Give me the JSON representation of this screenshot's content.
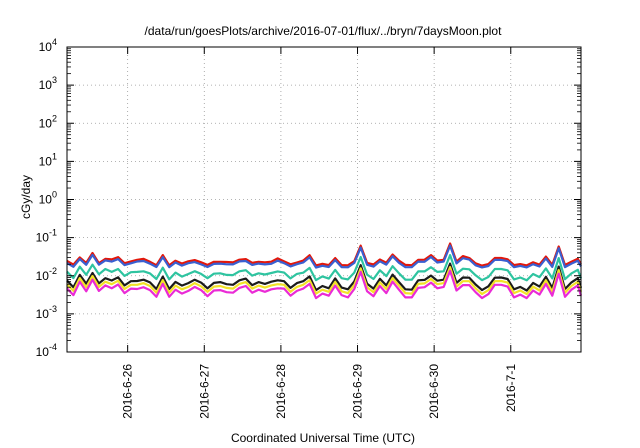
{
  "chart_data": {
    "type": "line",
    "title": "/data/run/goesPlots/archive/2016-07-01/flux/../bryn/7daysMoon.plot",
    "xlabel": "Coordinated Universal Time (UTC)",
    "ylabel": "cGy/day",
    "yscale": "log",
    "ylim": [
      0.0001,
      10000
    ],
    "xlim": [
      "2016-06-25T05:00",
      "2016-07-01T22:00"
    ],
    "grid": true,
    "legend": "none",
    "y_ticks": [
      {
        "mant": "10",
        "exp": "-4"
      },
      {
        "mant": "10",
        "exp": "-3"
      },
      {
        "mant": "10",
        "exp": "-2"
      },
      {
        "mant": "10",
        "exp": "-1"
      },
      {
        "mant": "10",
        "exp": "0"
      },
      {
        "mant": "10",
        "exp": "1"
      },
      {
        "mant": "10",
        "exp": "2"
      },
      {
        "mant": "10",
        "exp": "3"
      },
      {
        "mant": "10",
        "exp": "4"
      }
    ],
    "x_ticks": [
      "2016-6-26",
      "2016-6-27",
      "2016-6-28",
      "2016-6-29",
      "2016-6-30",
      "2016-7-1"
    ],
    "x": [
      "2016-06-25T05:00",
      "2016-06-25T07:00",
      "2016-06-25T09:00",
      "2016-06-25T11:00",
      "2016-06-25T13:00",
      "2016-06-25T15:00",
      "2016-06-25T17:00",
      "2016-06-25T19:00",
      "2016-06-25T21:00",
      "2016-06-25T23:00",
      "2016-06-26T01:00",
      "2016-06-26T03:00",
      "2016-06-26T05:00",
      "2016-06-26T07:00",
      "2016-06-26T09:00",
      "2016-06-26T11:00",
      "2016-06-26T13:00",
      "2016-06-26T15:00",
      "2016-06-26T17:00",
      "2016-06-26T19:00",
      "2016-06-26T21:00",
      "2016-06-26T23:00",
      "2016-06-27T01:00",
      "2016-06-27T03:00",
      "2016-06-27T05:00",
      "2016-06-27T07:00",
      "2016-06-27T09:00",
      "2016-06-27T11:00",
      "2016-06-27T13:00",
      "2016-06-27T15:00",
      "2016-06-27T17:00",
      "2016-06-27T19:00",
      "2016-06-27T21:00",
      "2016-06-27T23:00",
      "2016-06-28T01:00",
      "2016-06-28T03:00",
      "2016-06-28T05:00",
      "2016-06-28T07:00",
      "2016-06-28T09:00",
      "2016-06-28T11:00",
      "2016-06-28T13:00",
      "2016-06-28T15:00",
      "2016-06-28T17:00",
      "2016-06-28T19:00",
      "2016-06-28T21:00",
      "2016-06-28T23:00",
      "2016-06-29T01:00",
      "2016-06-29T03:00",
      "2016-06-29T05:00",
      "2016-06-29T07:00",
      "2016-06-29T09:00",
      "2016-06-29T11:00",
      "2016-06-29T13:00",
      "2016-06-29T15:00",
      "2016-06-29T17:00",
      "2016-06-29T19:00",
      "2016-06-29T21:00",
      "2016-06-29T23:00",
      "2016-06-30T01:00",
      "2016-06-30T03:00",
      "2016-06-30T05:00",
      "2016-06-30T07:00",
      "2016-06-30T09:00",
      "2016-06-30T11:00",
      "2016-06-30T13:00",
      "2016-06-30T15:00",
      "2016-06-30T17:00",
      "2016-06-30T19:00",
      "2016-06-30T21:00",
      "2016-06-30T23:00",
      "2016-07-01T01:00",
      "2016-07-01T03:00",
      "2016-07-01T05:00",
      "2016-07-01T07:00",
      "2016-07-01T09:00",
      "2016-07-01T11:00",
      "2016-07-01T13:00",
      "2016-07-01T15:00",
      "2016-07-01T17:00",
      "2016-07-01T19:00",
      "2016-07-01T21:00",
      "2016-07-01T22:00"
    ],
    "series": [
      {
        "color": "#e3170a",
        "values": [
          0.0245,
          0.0196,
          0.0302,
          0.0217,
          0.0396,
          0.0214,
          0.0277,
          0.0269,
          0.0308,
          0.0214,
          0.0236,
          0.0262,
          0.0276,
          0.0232,
          0.0189,
          0.0347,
          0.0188,
          0.0248,
          0.021,
          0.0239,
          0.0257,
          0.0225,
          0.0193,
          0.0232,
          0.0231,
          0.0229,
          0.0224,
          0.0264,
          0.0274,
          0.0218,
          0.0232,
          0.0225,
          0.0233,
          0.0285,
          0.0238,
          0.02,
          0.0223,
          0.0249,
          0.0346,
          0.0187,
          0.0206,
          0.019,
          0.029,
          0.019,
          0.0188,
          0.0241,
          0.0615,
          0.0217,
          0.0197,
          0.0267,
          0.022,
          0.036,
          0.0248,
          0.0192,
          0.0189,
          0.0262,
          0.0263,
          0.0349,
          0.0249,
          0.0262,
          0.0702,
          0.0235,
          0.0327,
          0.0292,
          0.0212,
          0.0185,
          0.0202,
          0.0292,
          0.0293,
          0.027,
          0.019,
          0.0202,
          0.0187,
          0.0225,
          0.0196,
          0.0317,
          0.0193,
          0.0586,
          0.0191,
          0.0233,
          0.0278,
          0.0197
        ]
      },
      {
        "color": "#3a5fd0",
        "values": [
          0.0215,
          0.0172,
          0.0275,
          0.0194,
          0.0353,
          0.0195,
          0.0252,
          0.0235,
          0.0273,
          0.019,
          0.0212,
          0.0236,
          0.0243,
          0.0207,
          0.017,
          0.0306,
          0.0168,
          0.0222,
          0.0185,
          0.0213,
          0.0228,
          0.0199,
          0.017,
          0.0205,
          0.0208,
          0.02,
          0.0198,
          0.0238,
          0.0243,
          0.0193,
          0.0208,
          0.0199,
          0.0206,
          0.025,
          0.0214,
          0.0176,
          0.0201,
          0.0223,
          0.0305,
          0.0164,
          0.0182,
          0.017,
          0.0257,
          0.0169,
          0.0167,
          0.0217,
          0.0546,
          0.0194,
          0.0174,
          0.0239,
          0.0196,
          0.0323,
          0.0219,
          0.0168,
          0.0168,
          0.0235,
          0.0232,
          0.031,
          0.0223,
          0.0236,
          0.0618,
          0.0211,
          0.0288,
          0.0265,
          0.0188,
          0.0166,
          0.018,
          0.0262,
          0.026,
          0.0242,
          0.0168,
          0.0181,
          0.0166,
          0.0201,
          0.0175,
          0.0283,
          0.0171,
          0.0528,
          0.0169,
          0.0208,
          0.0246,
          0.0176
        ]
      },
      {
        "color": "#2ec4a0",
        "values": [
          0.0128,
          0.0087,
          0.0173,
          0.0106,
          0.0195,
          0.0109,
          0.015,
          0.0126,
          0.015,
          0.0099,
          0.0124,
          0.0126,
          0.0131,
          0.0115,
          0.0082,
          0.0163,
          0.008,
          0.0121,
          0.0095,
          0.0111,
          0.0132,
          0.0112,
          0.0086,
          0.0113,
          0.0116,
          0.0105,
          0.0104,
          0.0131,
          0.014,
          0.0101,
          0.0116,
          0.0108,
          0.0118,
          0.013,
          0.0121,
          0.0085,
          0.0112,
          0.012,
          0.0161,
          0.0077,
          0.0096,
          0.0084,
          0.0142,
          0.0086,
          0.008,
          0.0121,
          0.031,
          0.0107,
          0.0082,
          0.0139,
          0.0098,
          0.0178,
          0.0116,
          0.0079,
          0.0079,
          0.013,
          0.013,
          0.0168,
          0.0126,
          0.0131,
          0.0348,
          0.0113,
          0.0153,
          0.0148,
          0.0103,
          0.0077,
          0.0093,
          0.015,
          0.015,
          0.0139,
          0.008,
          0.009,
          0.0076,
          0.0111,
          0.0092,
          0.0156,
          0.0085,
          0.029,
          0.0081,
          0.0115,
          0.0143,
          0.0085
        ]
      },
      {
        "color": "#1b1b1b",
        "values": [
          0.0075,
          0.005,
          0.0105,
          0.0062,
          0.0118,
          0.0063,
          0.0086,
          0.0075,
          0.0091,
          0.0056,
          0.0072,
          0.0073,
          0.0079,
          0.0067,
          0.0045,
          0.0095,
          0.0045,
          0.0069,
          0.0055,
          0.0064,
          0.0079,
          0.0066,
          0.0047,
          0.0065,
          0.0068,
          0.006,
          0.0058,
          0.0076,
          0.0084,
          0.0057,
          0.0068,
          0.0061,
          0.007,
          0.0076,
          0.0072,
          0.0048,
          0.0064,
          0.0072,
          0.0096,
          0.0042,
          0.0054,
          0.0047,
          0.0085,
          0.0049,
          0.0044,
          0.0071,
          0.019,
          0.0062,
          0.0046,
          0.0083,
          0.0056,
          0.0107,
          0.0068,
          0.0044,
          0.0043,
          0.0076,
          0.0078,
          0.0101,
          0.0074,
          0.0079,
          0.0207,
          0.0065,
          0.009,
          0.0089,
          0.0059,
          0.0042,
          0.0053,
          0.0089,
          0.009,
          0.0082,
          0.0044,
          0.0051,
          0.0041,
          0.0065,
          0.0052,
          0.0094,
          0.0048,
          0.0174,
          0.0045,
          0.0067,
          0.0086,
          0.0048
        ]
      },
      {
        "color": "#f2e227",
        "values": [
          0.006,
          0.004,
          0.0087,
          0.005,
          0.0098,
          0.0051,
          0.007,
          0.006,
          0.0074,
          0.0045,
          0.0058,
          0.0058,
          0.0064,
          0.0054,
          0.0036,
          0.0077,
          0.0036,
          0.0055,
          0.0044,
          0.0051,
          0.0064,
          0.0053,
          0.0038,
          0.0052,
          0.0054,
          0.0048,
          0.0046,
          0.0061,
          0.0068,
          0.0046,
          0.0055,
          0.0049,
          0.0056,
          0.006,
          0.0058,
          0.0038,
          0.0051,
          0.0058,
          0.0077,
          0.0034,
          0.0043,
          0.0038,
          0.0069,
          0.0039,
          0.0035,
          0.0057,
          0.0156,
          0.005,
          0.0037,
          0.0067,
          0.0045,
          0.0087,
          0.0055,
          0.0035,
          0.0034,
          0.0061,
          0.0063,
          0.0082,
          0.006,
          0.0064,
          0.0168,
          0.0052,
          0.0072,
          0.0072,
          0.0047,
          0.0033,
          0.0042,
          0.0072,
          0.0073,
          0.0066,
          0.0035,
          0.0041,
          0.0033,
          0.0052,
          0.0041,
          0.0076,
          0.0038,
          0.0141,
          0.0036,
          0.0054,
          0.007,
          0.0038
        ]
      },
      {
        "color": "#ea2bd6",
        "values": [
          0.0047,
          0.0031,
          0.007,
          0.0039,
          0.0079,
          0.004,
          0.0056,
          0.0047,
          0.0059,
          0.0035,
          0.0046,
          0.0045,
          0.005,
          0.0042,
          0.0028,
          0.0061,
          0.0028,
          0.0043,
          0.0034,
          0.004,
          0.0051,
          0.0042,
          0.0029,
          0.0041,
          0.0042,
          0.0037,
          0.0036,
          0.0048,
          0.0054,
          0.0036,
          0.0043,
          0.0038,
          0.0044,
          0.0047,
          0.0046,
          0.003,
          0.004,
          0.0046,
          0.0061,
          0.0026,
          0.0034,
          0.003,
          0.0055,
          0.0031,
          0.0027,
          0.0045,
          0.0126,
          0.0039,
          0.0029,
          0.0054,
          0.0035,
          0.007,
          0.0043,
          0.0027,
          0.0027,
          0.0048,
          0.005,
          0.0066,
          0.0047,
          0.0051,
          0.0135,
          0.0041,
          0.0057,
          0.0057,
          0.0037,
          0.0026,
          0.0033,
          0.0058,
          0.0058,
          0.0052,
          0.0027,
          0.0032,
          0.0026,
          0.0041,
          0.0032,
          0.0061,
          0.003,
          0.0113,
          0.0028,
          0.0043,
          0.0056,
          0.003
        ]
      }
    ]
  }
}
